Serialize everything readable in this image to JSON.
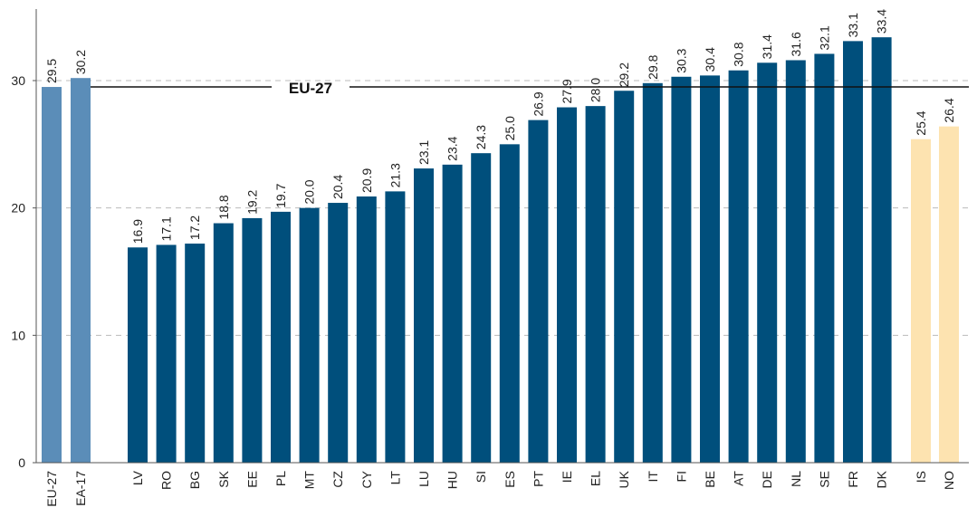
{
  "chart_data": {
    "type": "bar",
    "title": "",
    "xlabel": "",
    "ylabel": "",
    "ylim": [
      0,
      35
    ],
    "yticks": [
      0,
      10,
      20,
      30
    ],
    "grid": "horizontal dashed",
    "categories": [
      "EU-27",
      "EA-17",
      "LV",
      "RO",
      "BG",
      "SK",
      "EE",
      "PL",
      "MT",
      "CZ",
      "CY",
      "LT",
      "LU",
      "HU",
      "SI",
      "ES",
      "PT",
      "IE",
      "EL",
      "UK",
      "IT",
      "FI",
      "BE",
      "AT",
      "DE",
      "NL",
      "SE",
      "FR",
      "DK",
      "IS",
      "NO"
    ],
    "values": [
      29.5,
      30.2,
      16.9,
      17.1,
      17.2,
      18.8,
      19.2,
      19.7,
      20.0,
      20.4,
      20.9,
      21.3,
      23.1,
      23.4,
      24.3,
      25.0,
      26.9,
      27.9,
      28.0,
      29.2,
      29.8,
      30.3,
      30.4,
      30.8,
      31.4,
      31.6,
      32.1,
      33.1,
      33.4,
      25.4,
      26.4
    ],
    "value_labels": [
      "29.5",
      "30.2",
      "16.9",
      "17.1",
      "17.2",
      "18.8",
      "19.2",
      "19.7",
      "20.0",
      "20.4",
      "20.9",
      "21.3",
      "23.1",
      "23.4",
      "24.3",
      "25.0",
      "26.9",
      "27.9",
      "28.0",
      "29.2",
      "29.8",
      "30.3",
      "30.4",
      "30.8",
      "31.4",
      "31.6",
      "32.1",
      "33.1",
      "33.4",
      "25.4",
      "26.4"
    ],
    "groups": [
      "aggregate",
      "aggregate",
      "member",
      "member",
      "member",
      "member",
      "member",
      "member",
      "member",
      "member",
      "member",
      "member",
      "member",
      "member",
      "member",
      "member",
      "member",
      "member",
      "member",
      "member",
      "member",
      "member",
      "member",
      "member",
      "member",
      "member",
      "member",
      "member",
      "member",
      "efta",
      "efta"
    ],
    "colors": {
      "aggregate": "#5b8db8",
      "member": "#004f7c",
      "efta": "#fde3b0",
      "grid": "#bbbbbb",
      "axis": "#555555",
      "reference": "#111111"
    },
    "reference_line": {
      "value": 29.5,
      "label": "EU-27"
    }
  }
}
